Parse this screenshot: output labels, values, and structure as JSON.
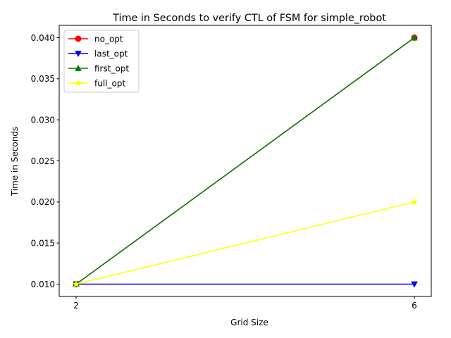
{
  "chart_data": {
    "type": "line",
    "title": "Time in Seconds to verify CTL of FSM for simple_robot",
    "xlabel": "Grid Size",
    "ylabel": "Time in Seconds",
    "x": [
      2,
      6
    ],
    "xlim": [
      1.8,
      6.2
    ],
    "ylim": [
      0.0085,
      0.0415
    ],
    "xticks": [
      2,
      6
    ],
    "xtick_labels": [
      "2",
      "6"
    ],
    "yticks": [
      0.01,
      0.015,
      0.02,
      0.025,
      0.03,
      0.035,
      0.04
    ],
    "ytick_labels": [
      "0.010",
      "0.015",
      "0.020",
      "0.025",
      "0.030",
      "0.035",
      "0.040"
    ],
    "grid": false,
    "legend_position": "upper left",
    "series": [
      {
        "name": "no_opt",
        "values": [
          0.01,
          0.04
        ],
        "color": "#ff0000",
        "marker": "circle"
      },
      {
        "name": "last_opt",
        "values": [
          0.01,
          0.01
        ],
        "color": "#0000ff",
        "marker": "triangle-down"
      },
      {
        "name": "first_opt",
        "values": [
          0.01,
          0.04
        ],
        "color": "#008000",
        "marker": "triangle-up"
      },
      {
        "name": "full_opt",
        "values": [
          0.01,
          0.02
        ],
        "color": "#ffff00",
        "marker": "star"
      }
    ]
  }
}
